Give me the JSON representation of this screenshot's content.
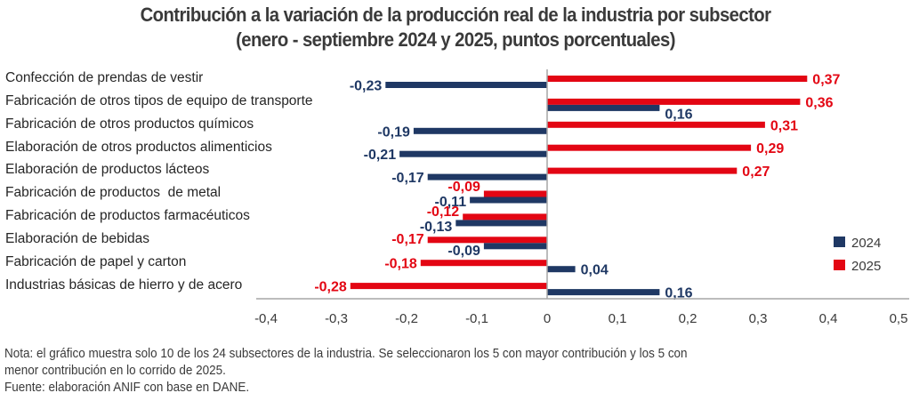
{
  "chart_data": {
    "type": "bar",
    "orientation": "horizontal",
    "title": "Contribución a la variación de la producción real de la industria por subsector",
    "subtitle": "(enero - septiembre 2024 y 2025, puntos porcentuales)",
    "categories": [
      "Confección de prendas de vestir",
      "Fabricación de otros tipos de equipo de transporte",
      "Fabricación de otros productos químicos",
      "Elaboración de otros productos alimenticios",
      "Elaboración de productos lácteos",
      "Fabricación de productos  de metal",
      "Fabricación de productos farmacéuticos",
      "Elaboración de bebidas",
      "Fabricación de papel y carton",
      "Industrias básicas de hierro y de acero"
    ],
    "series": [
      {
        "name": "2024",
        "color": "#1f3864",
        "values": [
          -0.23,
          0.16,
          -0.19,
          -0.21,
          -0.17,
          -0.11,
          -0.13,
          -0.09,
          0.04,
          0.16
        ],
        "labels": [
          "-0,23",
          "0,16",
          "-0,19",
          "-0,21",
          "-0,17",
          "-0,11",
          "-0,13",
          "-0,09",
          "0,04",
          "0,16"
        ]
      },
      {
        "name": "2025",
        "color": "#e30613",
        "values": [
          0.37,
          0.36,
          0.31,
          0.29,
          0.27,
          -0.09,
          -0.12,
          -0.17,
          -0.18,
          -0.28
        ],
        "labels": [
          "0,37",
          "0,36",
          "0,31",
          "0,29",
          "0,27",
          "-0,09",
          "-0,12",
          "-0,17",
          "-0,18",
          "-0,28"
        ]
      }
    ],
    "xlabel": "",
    "ylabel": "",
    "xlim": [
      -0.4,
      0.5
    ],
    "xticks": [
      -0.4,
      -0.3,
      -0.2,
      -0.1,
      0,
      0.1,
      0.2,
      0.3,
      0.4,
      0.5
    ],
    "xtick_labels": [
      "-0,4",
      "-0,3",
      "-0,2",
      "-0,1",
      "0",
      "0,1",
      "0,2",
      "0,3",
      "0,4",
      "0,5"
    ],
    "grid": false,
    "legend": [
      "2024",
      "2025"
    ],
    "legend_position": "right"
  },
  "footnote": {
    "line1": "Nota: el gráfico muestra solo 10 de los 24 subsectores de la industria. Se seleccionaron los 5 con mayor contribución y los 5 con",
    "line2": "menor contribución en lo corrido de 2025.",
    "line3": "Fuente: elaboración ANIF con base en DANE."
  }
}
